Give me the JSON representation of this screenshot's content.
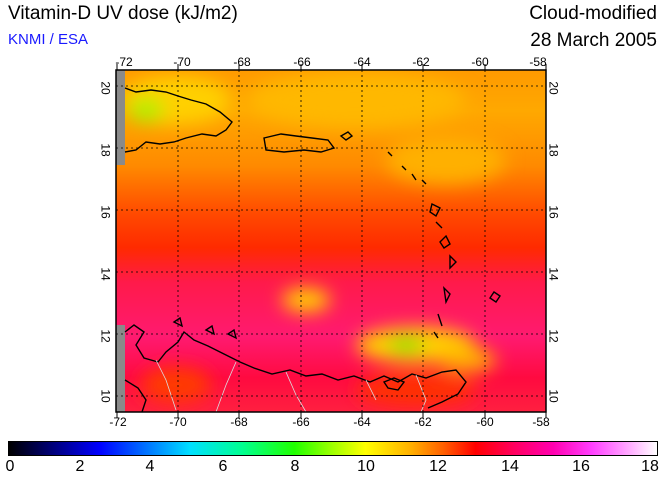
{
  "header": {
    "title": "Vitamin-D UV dose (kJ/m2)",
    "source": "KNMI / ESA",
    "product": "Cloud-modified",
    "date": "28 March 2005"
  },
  "map": {
    "lon_range": [
      -72,
      -58
    ],
    "lat_range": [
      9.5,
      20.5
    ],
    "lon_ticks": [
      "-72",
      "-70",
      "-68",
      "-66",
      "-64",
      "-62",
      "-60",
      "-58"
    ],
    "lat_ticks": [
      "20",
      "18",
      "16",
      "14",
      "12",
      "10"
    ],
    "grid": "dotted",
    "regions": [
      "Hispaniola",
      "Puerto Rico",
      "Lesser Antilles",
      "Venezuela coast",
      "Trinidad"
    ]
  },
  "colorbar": {
    "min": 0,
    "max": 18,
    "labels": [
      "0",
      "2",
      "4",
      "6",
      "8",
      "10",
      "12",
      "14",
      "16",
      "18"
    ]
  },
  "colors": {
    "orange_high": "#ff9a00",
    "yellow_high": "#ffd000",
    "red_mid": "#ff2a00",
    "magenta_low": "#ff1a78",
    "green_spot": "#7ee000",
    "land_gray": "#8a8a8a",
    "subtitle_blue": "#1a1aff"
  }
}
